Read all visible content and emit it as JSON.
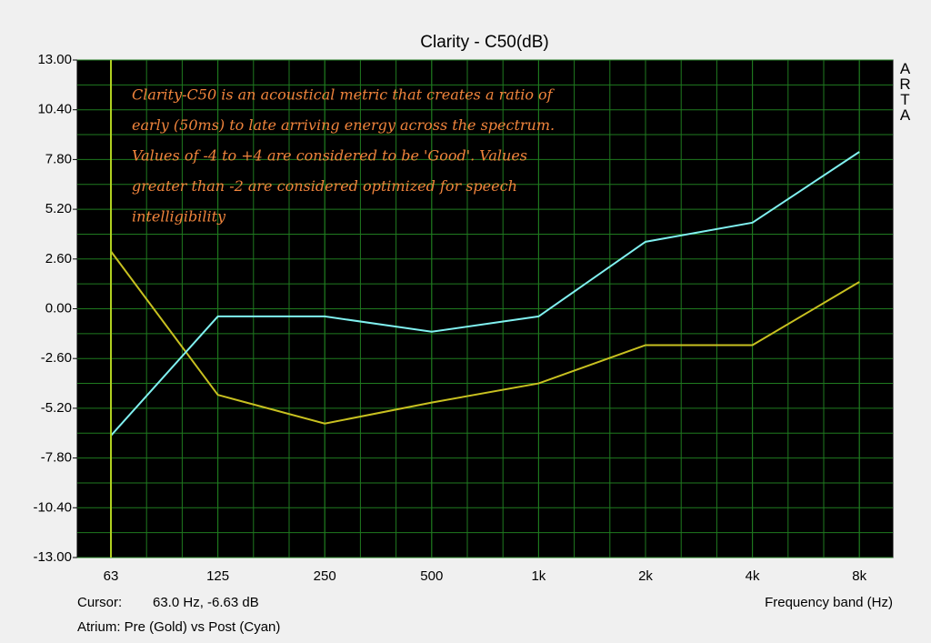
{
  "chart_data": {
    "type": "line",
    "title": "Clarity - C50(dB)",
    "x_label": "Frequency band (Hz)",
    "watermark": "ARTA",
    "cursor": {
      "label": "Cursor:",
      "text": "63.0 Hz, -6.63 dB"
    },
    "caption": "Atrium: Pre (Gold) vs Post (Cyan)",
    "annotation": [
      "Clarity-C50 is an acoustical metric that creates a ratio of",
      "early (50ms) to late arriving energy across the spectrum.",
      "Values of -4 to +4 are considered to be 'Good'.  Values",
      "greater than -2 are considered optimized for speech",
      "intelligibility"
    ],
    "categories": [
      "63",
      "125",
      "250",
      "500",
      "1k",
      "2k",
      "4k",
      "8k"
    ],
    "series": [
      {
        "color": "#c8c020",
        "values": [
          3.0,
          -4.5,
          -6.0,
          -4.9,
          -3.9,
          -1.9,
          -1.9,
          1.4
        ]
      },
      {
        "color": "#80f0f0",
        "values": [
          -6.63,
          -0.4,
          -0.4,
          -1.2,
          -0.4,
          3.5,
          4.5,
          8.2
        ]
      }
    ],
    "ylim": [
      -13,
      13
    ],
    "yticks": [
      {
        "value": 13,
        "label": "13.00"
      },
      {
        "value": 10.4,
        "label": "10.40"
      },
      {
        "value": 7.8,
        "label": "7.80"
      },
      {
        "value": 5.2,
        "label": "5.20"
      },
      {
        "value": 2.6,
        "label": "2.60"
      },
      {
        "value": 0,
        "label": "0.00"
      },
      {
        "value": -2.6,
        "label": "-2.60"
      },
      {
        "value": -5.2,
        "label": "-5.20"
      },
      {
        "value": -7.8,
        "label": "-7.80"
      },
      {
        "value": -10.4,
        "label": "-10.40"
      },
      {
        "value": -13,
        "label": "-13.00"
      }
    ],
    "grid": true
  }
}
